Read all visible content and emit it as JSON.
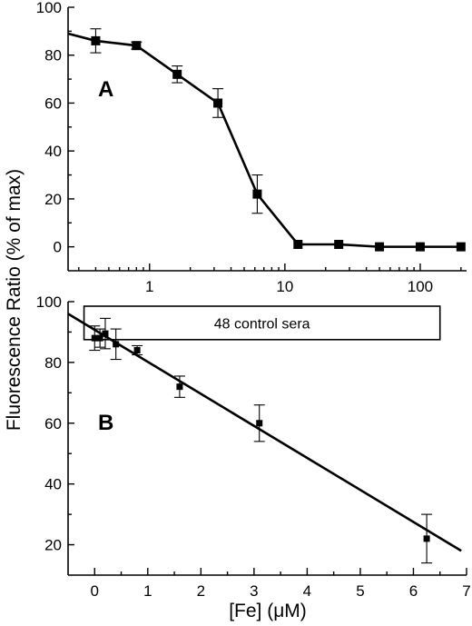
{
  "chart_data": [
    {
      "type": "line",
      "panel_label": "A",
      "x_scale": "log",
      "xlim": [
        0.25,
        220
      ],
      "ylim": [
        -10,
        100
      ],
      "x_ticks": [
        1,
        10,
        100
      ],
      "x_tick_labels": [
        "1",
        "10",
        "100"
      ],
      "y_ticks": [
        0,
        20,
        40,
        60,
        80,
        100
      ],
      "y_tick_labels": [
        "0",
        "20",
        "40",
        "60",
        "80",
        "100"
      ],
      "line_start": {
        "x": 0.25,
        "y": 89
      },
      "series": [
        {
          "x": [
            0.4,
            0.8,
            1.6,
            3.2,
            6.25,
            12.5,
            25,
            50,
            100,
            200
          ],
          "y": [
            86,
            84,
            72,
            60,
            22,
            1,
            1,
            0,
            0,
            0
          ],
          "err": [
            5,
            1.5,
            3.5,
            6,
            8,
            0,
            0,
            0,
            0,
            0
          ]
        }
      ]
    },
    {
      "type": "scatter",
      "panel_label": "B",
      "xlim": [
        -0.5,
        7
      ],
      "ylim": [
        10,
        100
      ],
      "x_ticks": [
        0,
        1,
        2,
        3,
        4,
        5,
        6,
        7
      ],
      "x_tick_labels": [
        "0",
        "1",
        "2",
        "3",
        "4",
        "5",
        "6",
        "7"
      ],
      "y_ticks": [
        20,
        40,
        60,
        80,
        100
      ],
      "y_tick_labels": [
        "20",
        "40",
        "60",
        "80",
        "100"
      ],
      "xlabel": "[Fe] (μM)",
      "series": [
        {
          "x": [
            0,
            0.1,
            0.2,
            0.4,
            0.8,
            1.6,
            3.1,
            6.25
          ],
          "y": [
            88,
            88,
            89.5,
            86,
            84,
            72,
            60,
            22
          ],
          "err": [
            4,
            3,
            5,
            5,
            1.5,
            3.5,
            6,
            8
          ]
        }
      ],
      "fit_line": {
        "x": [
          -0.5,
          6.9
        ],
        "y": [
          96,
          18
        ]
      },
      "reference_range": {
        "label": "48 control sera",
        "x": [
          -0.2,
          6.5
        ],
        "y": [
          87.5,
          98.5
        ]
      }
    }
  ],
  "ylabel": "Fluorescence Ratio (% of max)"
}
